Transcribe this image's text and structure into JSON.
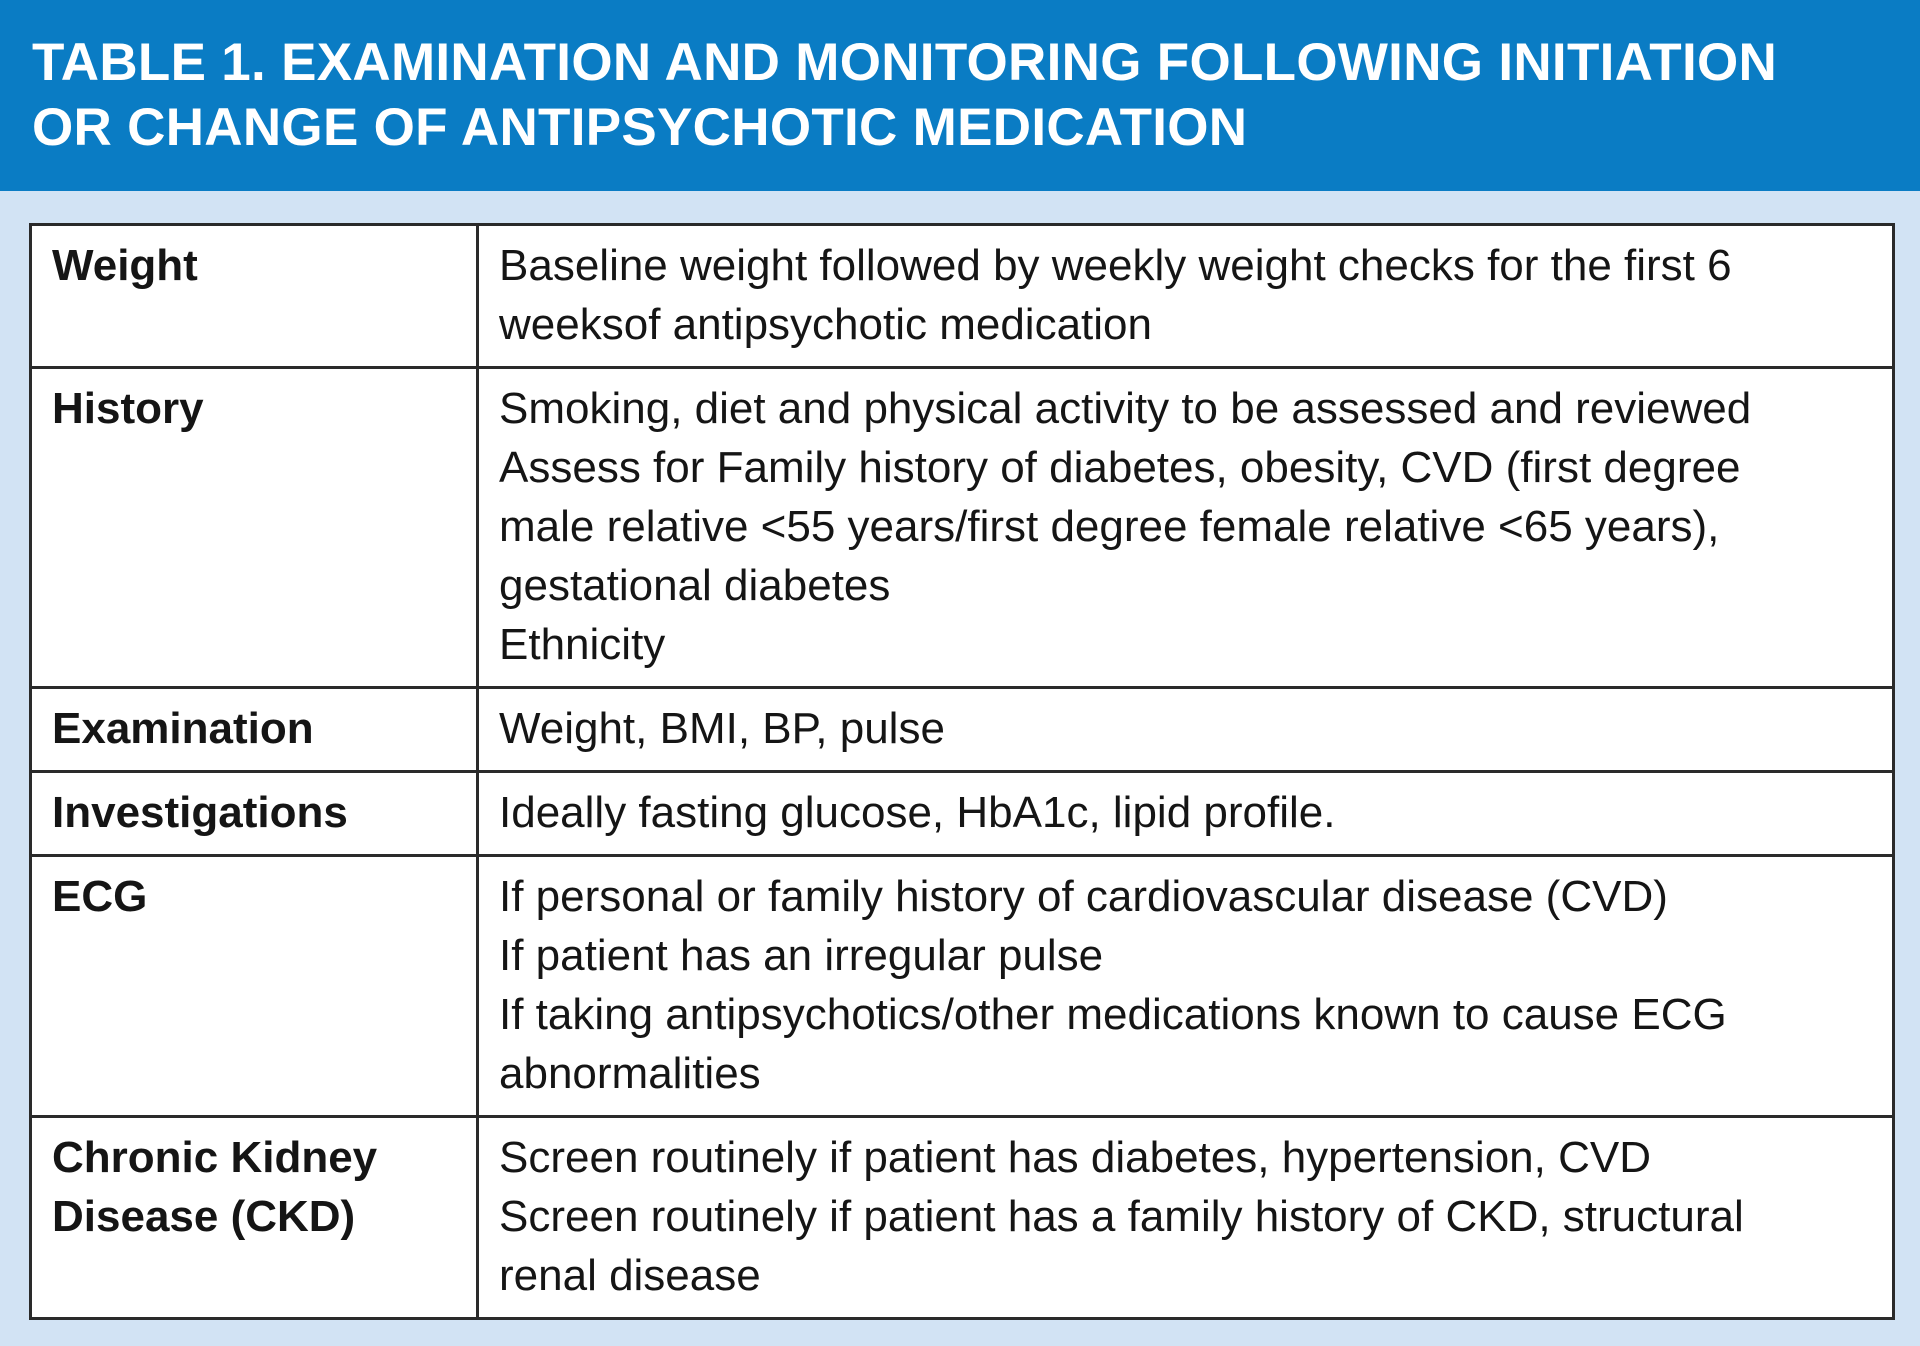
{
  "title": "TABLE 1. EXAMINATION AND MONITORING FOLLOWING INITIATION\nOR CHANGE OF ANTIPSYCHOTIC MEDICATION",
  "rows": [
    {
      "label": "Weight",
      "details": "Baseline weight followed by weekly weight checks for the first 6\nweeksof antipsychotic medication"
    },
    {
      "label": "History",
      "details": "Smoking, diet and physical activity to be assessed and reviewed\nAssess for Family history of diabetes, obesity, CVD (first degree\nmale relative <55 years/first degree female relative <65 years),\ngestational  diabetes\nEthnicity"
    },
    {
      "label": "Examination",
      "details": "Weight, BMI, BP, pulse"
    },
    {
      "label": "Investigations",
      "details": "Ideally fasting glucose, HbA1c, lipid profile."
    },
    {
      "label": "ECG",
      "details": "If personal or family history of cardiovascular disease (CVD)\nIf patient has an irregular pulse\nIf taking antipsychotics/other medications known to cause ECG\nabnormalities"
    },
    {
      "label": "Chronic Kidney\nDisease (CKD)",
      "details": "Screen routinely if patient has diabetes, hypertension, CVD\nScreen routinely if patient has a family history of CKD, structural\nrenal disease"
    }
  ]
}
